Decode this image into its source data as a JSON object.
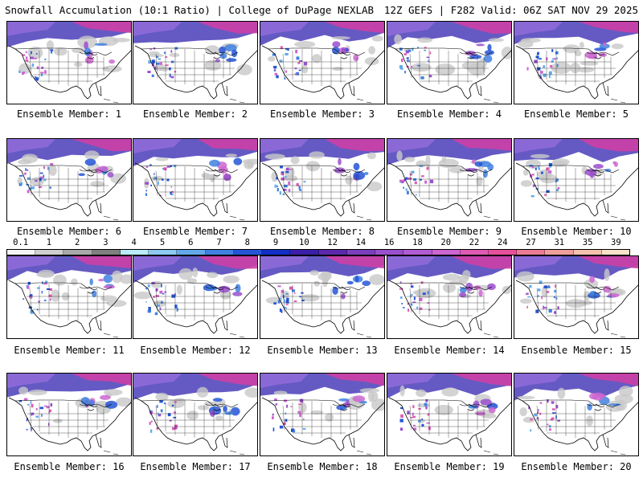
{
  "header": {
    "title_left": "Snowfall Accumulation (10:1 Ratio) | College of DuPage NEXLAB",
    "title_right": "12Z GEFS | F282 Valid: 06Z SAT NOV 29 2025"
  },
  "colorbar": {
    "labels": [
      "0.1",
      "1",
      "2",
      "3",
      "4",
      "5",
      "6",
      "7",
      "8",
      "9",
      "10",
      "12",
      "14",
      "16",
      "18",
      "20",
      "22",
      "24",
      "27",
      "31",
      "35",
      "39"
    ],
    "colors": [
      "#f4f4f4",
      "#cfcfcf",
      "#a9a9a9",
      "#7f7f7f",
      "#b9ecf8",
      "#8ccaf1",
      "#63a9e9",
      "#3f80e0",
      "#2455d6",
      "#102fc6",
      "#3a1ea8",
      "#5d27ad",
      "#7b3fbd",
      "#9a4fcc",
      "#b25cd3",
      "#cc66d0",
      "#df5bb3",
      "#e7509a",
      "#ea7b93",
      "#ef9f9a",
      "#f3c2ac",
      "#f8e1c9"
    ]
  },
  "panels": [
    {
      "label": "Ensemble Member: 1"
    },
    {
      "label": "Ensemble Member: 2"
    },
    {
      "label": "Ensemble Member: 3"
    },
    {
      "label": "Ensemble Member: 4"
    },
    {
      "label": "Ensemble Member: 5"
    },
    {
      "label": "Ensemble Member: 6"
    },
    {
      "label": "Ensemble Member: 7"
    },
    {
      "label": "Ensemble Member: 8"
    },
    {
      "label": "Ensemble Member: 9"
    },
    {
      "label": "Ensemble Member: 10"
    },
    {
      "label": "Ensemble Member: 11"
    },
    {
      "label": "Ensemble Member: 12"
    },
    {
      "label": "Ensemble Member: 13"
    },
    {
      "label": "Ensemble Member: 14"
    },
    {
      "label": "Ensemble Member: 15"
    },
    {
      "label": "Ensemble Member: 16"
    },
    {
      "label": "Ensemble Member: 17"
    },
    {
      "label": "Ensemble Member: 18"
    },
    {
      "label": "Ensemble Member: 19"
    },
    {
      "label": "Ensemble Member: 20"
    }
  ]
}
